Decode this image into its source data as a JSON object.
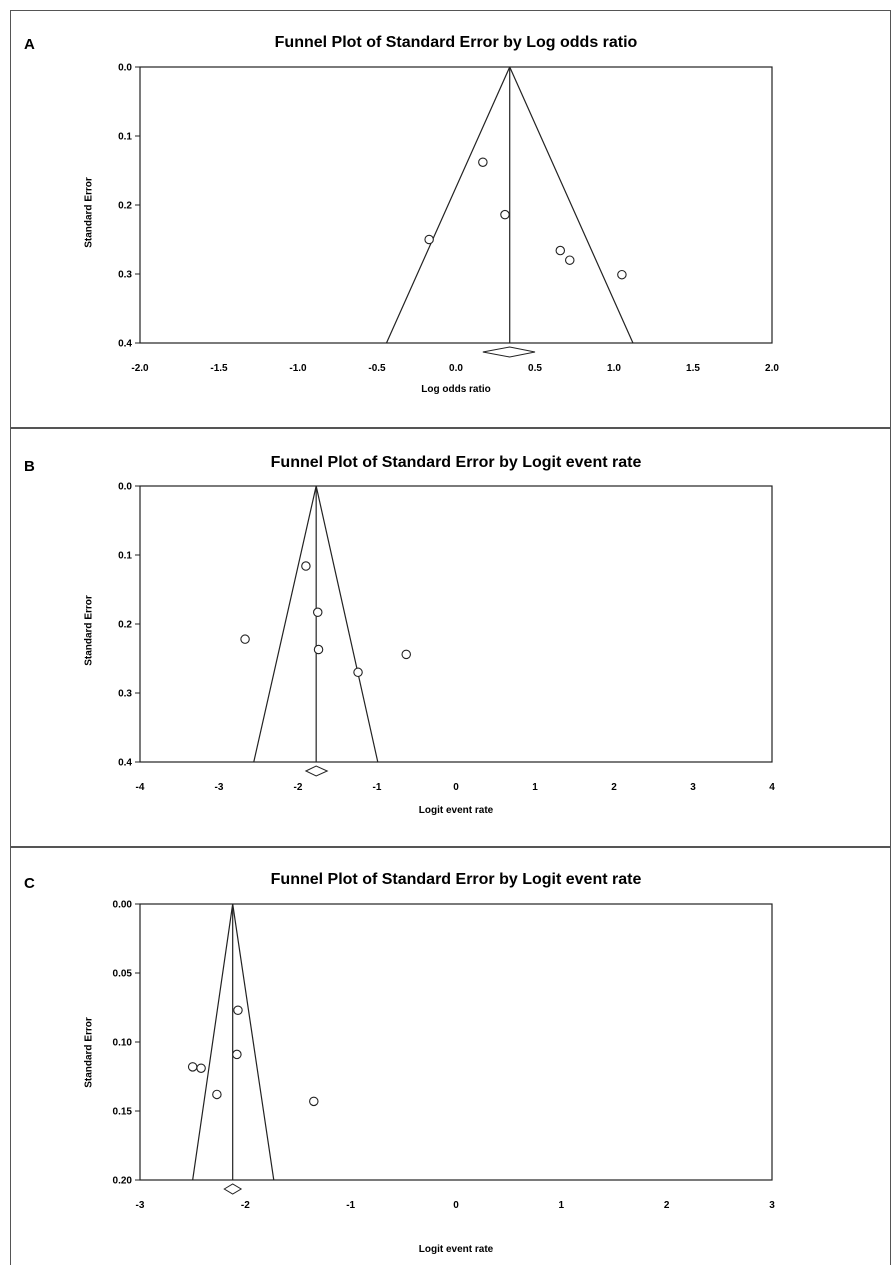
{
  "panels": [
    {
      "letter": "A"
    },
    {
      "letter": "B"
    },
    {
      "letter": "C"
    }
  ],
  "chart_data": [
    {
      "type": "scatter",
      "title": "Funnel Plot of Standard Error by Log odds ratio",
      "xlabel": "Log odds ratio",
      "ylabel": "Standard Error",
      "xlim": [
        -2.0,
        2.0
      ],
      "ylim": [
        0.0,
        0.4
      ],
      "y_inverted": true,
      "xticks": [
        "-2.0",
        "-1.5",
        "-1.0",
        "-0.5",
        "0.0",
        "0.5",
        "1.0",
        "1.5",
        "2.0"
      ],
      "yticks": [
        "0.0",
        "0.1",
        "0.2",
        "0.3",
        "0.4"
      ],
      "summary_effect": 0.34,
      "summary_ci": [
        0.17,
        0.5
      ],
      "funnel_base": [
        -0.44,
        1.12
      ],
      "points": [
        {
          "x": 0.17,
          "y": 0.138
        },
        {
          "x": 0.31,
          "y": 0.214
        },
        {
          "x": -0.17,
          "y": 0.25
        },
        {
          "x": 0.66,
          "y": 0.266
        },
        {
          "x": 0.72,
          "y": 0.28
        },
        {
          "x": 1.05,
          "y": 0.301
        }
      ],
      "grid": false
    },
    {
      "type": "scatter",
      "title": "Funnel Plot of Standard Error by Logit event rate",
      "xlabel": "Logit event rate",
      "ylabel": "Standard Error",
      "xlim": [
        -4,
        4
      ],
      "ylim": [
        0.0,
        0.4
      ],
      "y_inverted": true,
      "xticks": [
        "-4",
        "-3",
        "-2",
        "-1",
        "0",
        "1",
        "2",
        "3",
        "4"
      ],
      "yticks": [
        "0.0",
        "0.1",
        "0.2",
        "0.3",
        "0.4"
      ],
      "summary_effect": -1.77,
      "summary_ci": [
        -1.9,
        -1.63
      ],
      "funnel_base": [
        -2.56,
        -0.99
      ],
      "points": [
        {
          "x": -1.9,
          "y": 0.116
        },
        {
          "x": -1.75,
          "y": 0.183
        },
        {
          "x": -2.67,
          "y": 0.222
        },
        {
          "x": -1.74,
          "y": 0.237
        },
        {
          "x": -0.63,
          "y": 0.244
        },
        {
          "x": -1.24,
          "y": 0.27
        }
      ],
      "grid": false
    },
    {
      "type": "scatter",
      "title": "Funnel Plot of Standard Error by Logit event rate",
      "xlabel": "Logit event rate",
      "ylabel": "Standard Error",
      "xlim": [
        -3,
        3
      ],
      "ylim": [
        0.0,
        0.2
      ],
      "y_inverted": true,
      "xticks": [
        "-3",
        "-2",
        "-1",
        "0",
        "1",
        "2",
        "3"
      ],
      "yticks": [
        "0.00",
        "0.05",
        "0.10",
        "0.15",
        "0.20"
      ],
      "summary_effect": -2.12,
      "summary_ci": [
        -2.2,
        -2.04
      ],
      "funnel_base": [
        -2.5,
        -1.73
      ],
      "points": [
        {
          "x": -2.07,
          "y": 0.077
        },
        {
          "x": -2.08,
          "y": 0.109
        },
        {
          "x": -2.5,
          "y": 0.118
        },
        {
          "x": -2.42,
          "y": 0.119
        },
        {
          "x": -2.27,
          "y": 0.138
        },
        {
          "x": -1.35,
          "y": 0.143
        }
      ],
      "grid": false
    }
  ]
}
